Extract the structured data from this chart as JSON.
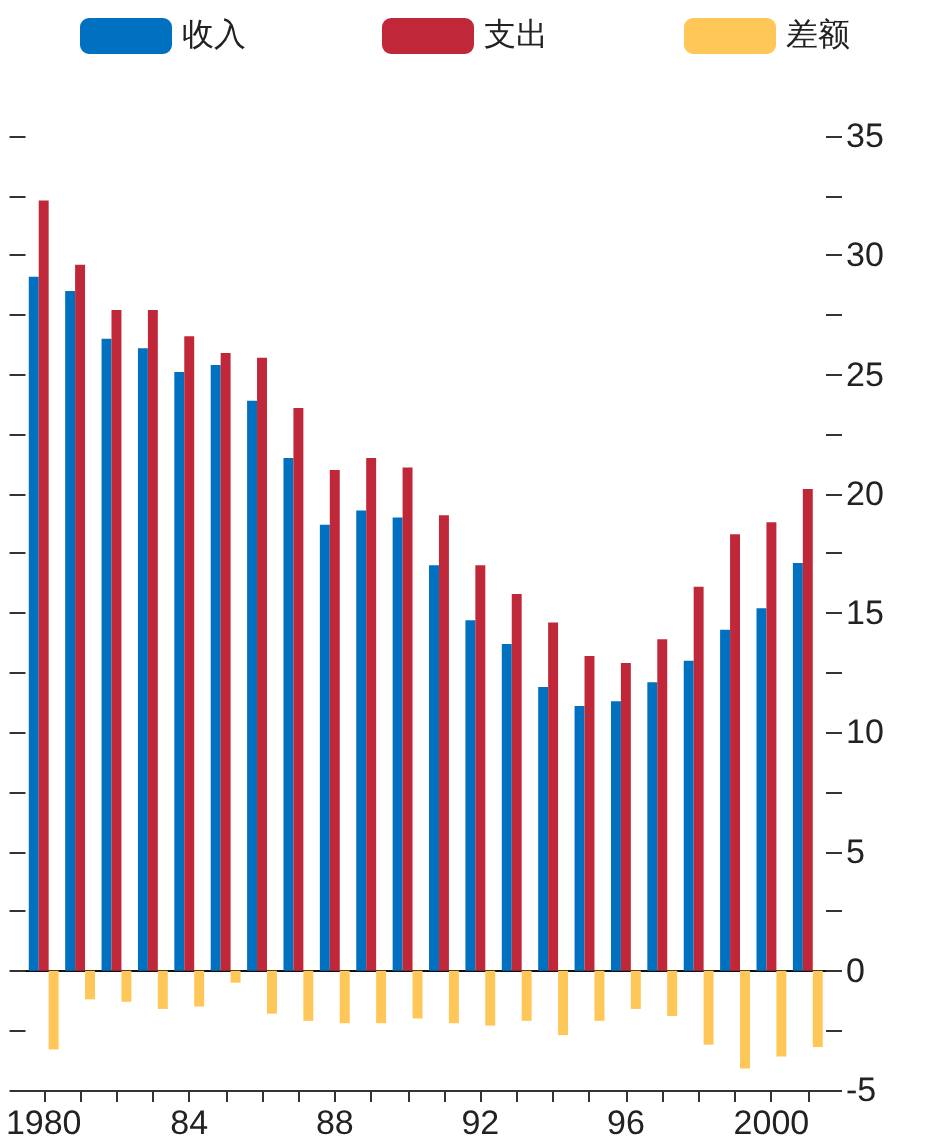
{
  "chart_data": {
    "type": "bar",
    "categories": [
      "1980",
      null,
      null,
      null,
      "84",
      null,
      null,
      null,
      "88",
      null,
      null,
      null,
      "92",
      null,
      null,
      null,
      "96",
      null,
      null,
      null,
      "2000",
      null
    ],
    "series": [
      {
        "name": "收入",
        "color": "#0070c0",
        "values": [
          29.1,
          28.5,
          26.5,
          26.1,
          25.1,
          25.4,
          23.9,
          21.5,
          18.7,
          19.3,
          19.0,
          17.0,
          14.7,
          13.7,
          11.9,
          11.1,
          11.3,
          12.1,
          13.0,
          14.3,
          15.2,
          17.1
        ]
      },
      {
        "name": "支出",
        "color": "#c0283a",
        "values": [
          32.3,
          29.6,
          27.7,
          27.7,
          26.6,
          25.9,
          25.7,
          23.6,
          21.0,
          21.5,
          21.1,
          19.1,
          17.0,
          15.8,
          14.6,
          13.2,
          12.9,
          13.9,
          16.1,
          18.3,
          18.8,
          20.2
        ]
      },
      {
        "name": "差额",
        "color": "#ffc658",
        "values": [
          -3.3,
          -1.2,
          -1.3,
          -1.6,
          -1.5,
          -0.5,
          -1.8,
          -2.1,
          -2.2,
          -2.2,
          -2.0,
          -2.2,
          -2.3,
          -2.1,
          -2.7,
          -2.1,
          -1.6,
          -1.9,
          -3.1,
          -4.1,
          -3.6,
          -3.2
        ]
      }
    ],
    "ylim": [
      -5,
      35
    ],
    "yticks": [
      -5,
      {
        "value": -2.5,
        "label": null
      },
      0,
      {
        "value": 2.5,
        "label": null
      },
      5,
      {
        "value": 7.5,
        "label": null
      },
      10,
      {
        "value": 12.5,
        "label": null
      },
      15,
      {
        "value": 17.5,
        "label": null
      },
      20,
      {
        "value": 22.5,
        "label": null
      },
      25,
      {
        "value": 27.5,
        "label": null
      },
      30,
      {
        "value": 32.5,
        "label": null
      },
      35
    ],
    "legend": "top"
  }
}
